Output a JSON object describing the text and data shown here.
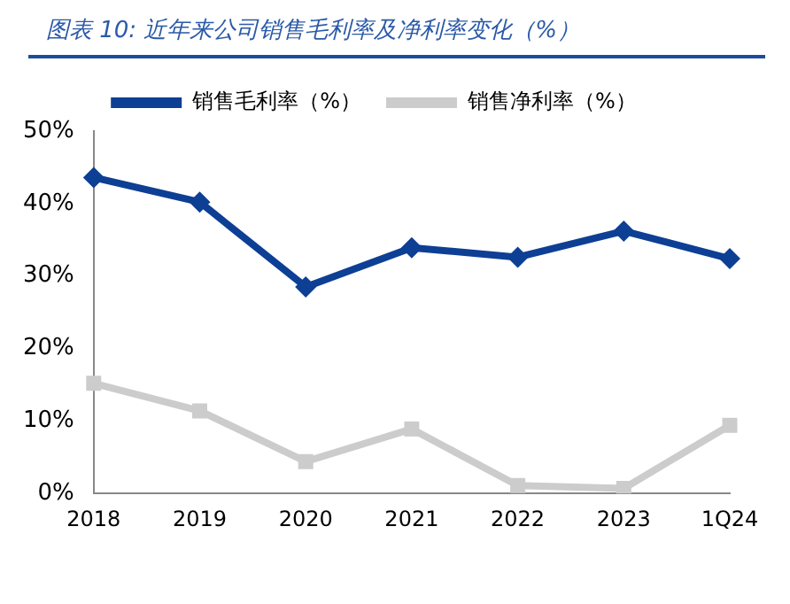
{
  "chart_data": {
    "type": "line",
    "title": "图表 10:  近年来公司销售毛利率及净利率变化（%）",
    "categories": [
      "2018",
      "2019",
      "2020",
      "2021",
      "2022",
      "2023",
      "1Q24"
    ],
    "series": [
      {
        "name": "销售毛利率（%）",
        "color": "#0d3f94",
        "marker": "diamond",
        "values": [
          43.6,
          40.2,
          28.5,
          33.9,
          32.6,
          36.2,
          32.4
        ]
      },
      {
        "name": "销售净利率（%）",
        "color": "#cccccc",
        "marker": "square",
        "values": [
          15.2,
          11.4,
          4.4,
          8.9,
          1.1,
          0.7,
          9.4
        ]
      }
    ],
    "ylim": [
      0,
      50
    ],
    "yticks": [
      {
        "value": 0,
        "label": "0%"
      },
      {
        "value": 10,
        "label": "10%"
      },
      {
        "value": 20,
        "label": "20%"
      },
      {
        "value": 30,
        "label": "30%"
      },
      {
        "value": 40,
        "label": "40%"
      },
      {
        "value": 50,
        "label": "50%"
      }
    ],
    "grid": false,
    "legend": "top",
    "line_style": "solid"
  }
}
